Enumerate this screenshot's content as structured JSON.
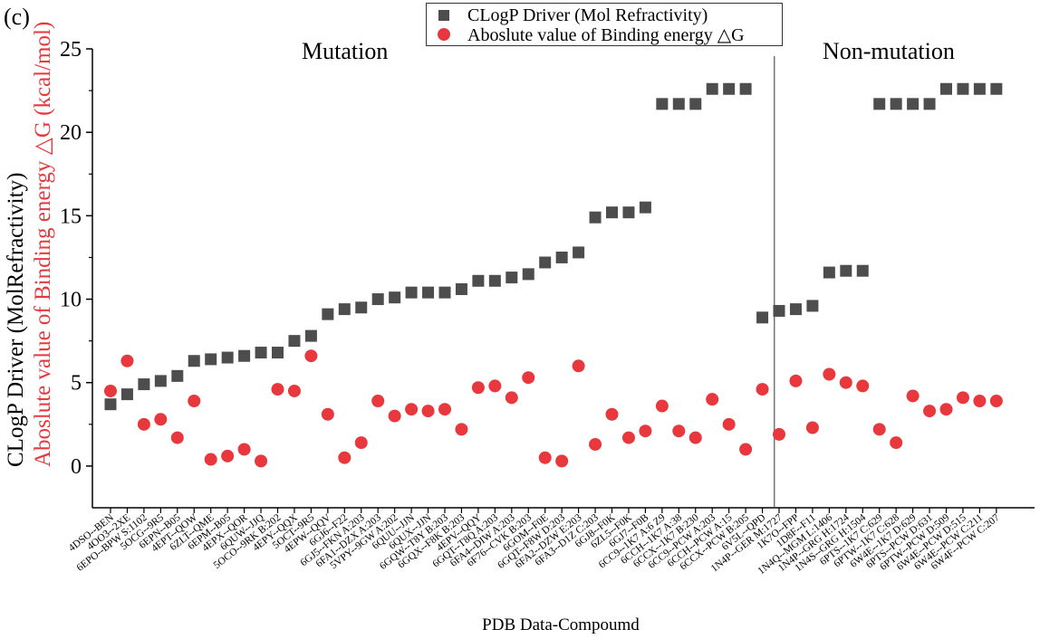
{
  "panel_label": "(c)",
  "colors": {
    "series1": "#4d4d4d",
    "series2": "#e8383d",
    "axis": "#000000"
  },
  "chart_data": {
    "type": "scatter",
    "title": "",
    "xlabel": "PDB Data-Compoumd",
    "ylabel_part1": "CLogP Driver (MolRefractivity)",
    "ylabel_part2": "Aboslute value of Binding energy △G (kcal/mol)",
    "ylim": [
      -2.5,
      25
    ],
    "yticks": [
      0,
      5,
      10,
      15,
      20,
      25
    ],
    "regions": [
      {
        "label": "Mutation"
      },
      {
        "label": "Non-mutation"
      }
    ],
    "mutation_count": 40,
    "categories": [
      "4DSO--BEN",
      "4OO3--2XE",
      "6EPO--BPW S:1102",
      "5OCG--9R5",
      "6EPN--B05",
      "4EPT--QOW",
      "6ZLT--QME",
      "6EPM--B05",
      "4EPX--QOR",
      "6QUW--JJQ",
      "5OCO--9RK B:202",
      "4EPY--QQX",
      "5OCT--9R5",
      "4EPW--QQV",
      "6GJ6--F22",
      "6GJ5--FKN A:203",
      "6FA1--DZX A:203",
      "5VPY--9GW A:202",
      "6QUU--JJN",
      "6QUX--JJN",
      "6GQW--T8Y B:203",
      "6GQX--F8K B:203",
      "4EPV--QQY",
      "6GQT--T8Q A:203",
      "6FA4--DIW A:203",
      "6F76--CVK B:203",
      "6GOM--F0E",
      "6GQT--F8W D:203",
      "6FA2--DZW E:203",
      "6FA3--D1Z C:203",
      "6GJ8--F0K",
      "6ZL5--F0K",
      "6GJ7--F0B",
      "6CC9--1K7 A:6 Z9",
      "6CCH--1K7 A:38",
      "6CCX--1K7 B:230",
      "6CC9--PCW A:203",
      "6CCH--PCW A:15",
      "6CCX--PCW B:205",
      "6V5L--QPD",
      "1N4P--GER M:1727",
      "1K7O--FPP",
      "1D8F--F11",
      "1N4Q--MGM L:1406",
      "1N4P--GRG H:1724",
      "1N4S--GRG H:1504",
      "6PTS--1K7 C:629",
      "6PTW--1K7 C:628",
      "6W4E--1K7 D:629",
      "6PTS--PCW D:631",
      "6PTW--PCW D:509",
      "6W4E--PCW D:515",
      "6W4E--PCW C:211",
      "6W4F--PCW C:207"
    ],
    "series": [
      {
        "name": "CLogP Driver (Mol Refractivity)",
        "marker": "square",
        "values": [
          3.7,
          4.3,
          4.9,
          5.1,
          5.4,
          6.3,
          6.4,
          6.5,
          6.6,
          6.8,
          6.8,
          7.5,
          7.8,
          9.1,
          9.4,
          9.5,
          10.0,
          10.1,
          10.4,
          10.4,
          10.4,
          10.6,
          11.1,
          11.1,
          11.3,
          11.5,
          12.2,
          12.5,
          12.8,
          14.9,
          15.2,
          15.2,
          15.5,
          21.7,
          21.7,
          21.7,
          22.6,
          22.6,
          22.6,
          8.9,
          9.3,
          9.4,
          9.6,
          11.6,
          11.7,
          11.7,
          21.7,
          21.7,
          21.7,
          21.7,
          22.6,
          22.6,
          22.6,
          22.6
        ]
      },
      {
        "name": "Aboslute value of Binding energy △G",
        "marker": "circle",
        "values": [
          4.5,
          6.3,
          2.5,
          2.8,
          1.7,
          3.9,
          0.4,
          0.6,
          1.0,
          0.3,
          4.6,
          4.5,
          6.6,
          3.1,
          0.5,
          1.4,
          3.9,
          3.0,
          3.4,
          3.3,
          3.4,
          2.2,
          4.7,
          4.8,
          4.1,
          5.3,
          0.5,
          0.3,
          6.0,
          1.3,
          3.1,
          1.7,
          2.1,
          3.6,
          2.1,
          1.7,
          4.0,
          2.5,
          1.0,
          4.6,
          1.9,
          5.1,
          2.3,
          5.5,
          5.0,
          4.8,
          2.2,
          1.4,
          4.2,
          3.3,
          3.4,
          4.1,
          3.9,
          3.9
        ]
      }
    ]
  }
}
